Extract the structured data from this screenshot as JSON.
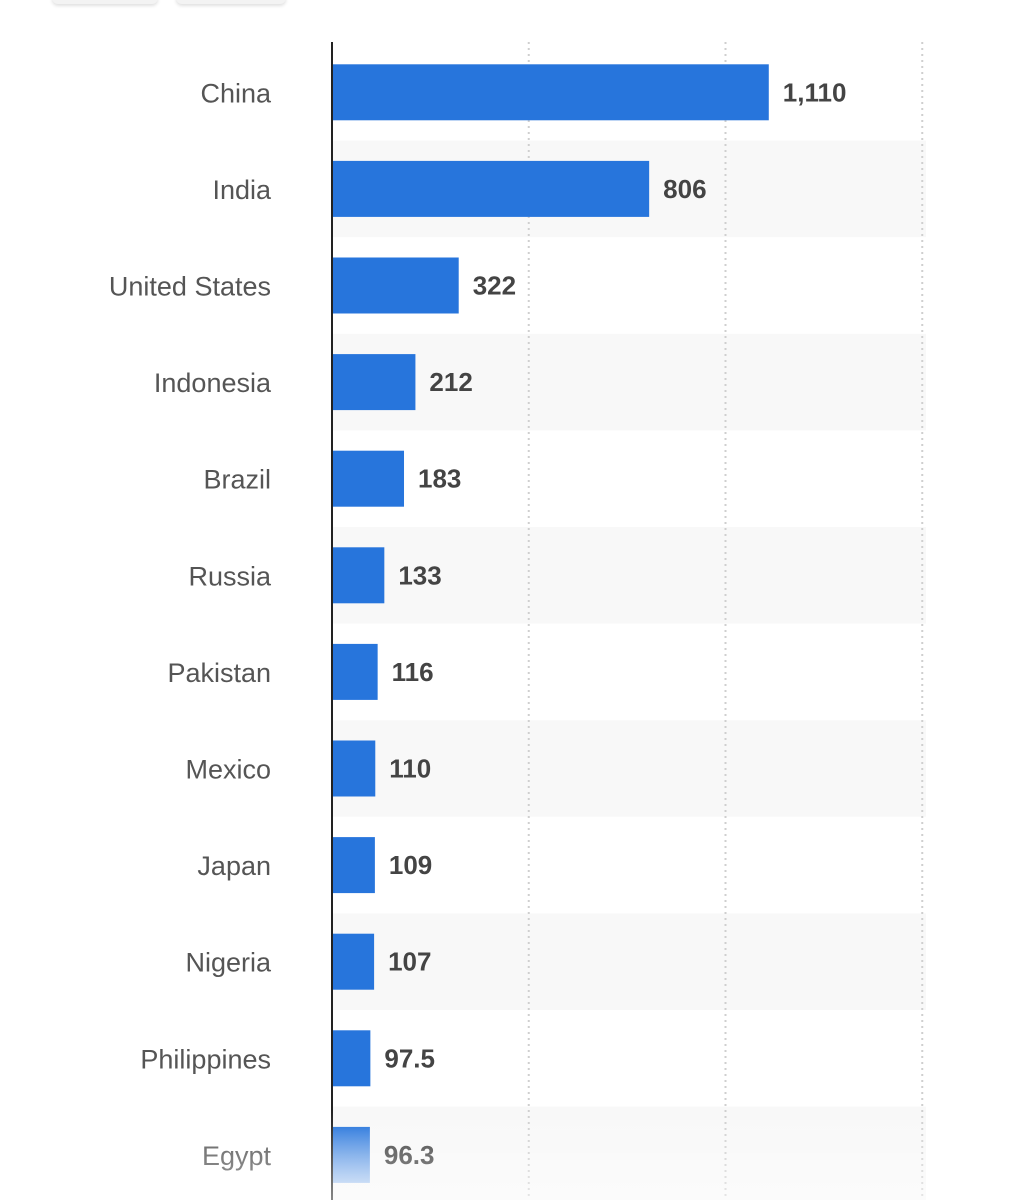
{
  "chart_data": {
    "type": "bar",
    "orientation": "horizontal",
    "categories": [
      "China",
      "India",
      "United States",
      "Indonesia",
      "Brazil",
      "Russia",
      "Pakistan",
      "Mexico",
      "Japan",
      "Nigeria",
      "Philippines",
      "Egypt"
    ],
    "values": [
      1110,
      806,
      322,
      212,
      183,
      133,
      116,
      110,
      109,
      107,
      97.5,
      96.3
    ],
    "value_labels": [
      "1,110",
      "806",
      "322",
      "212",
      "183",
      "133",
      "116",
      "110",
      "109",
      "107",
      "97.5",
      "96.3"
    ],
    "xlim": [
      0,
      1500
    ],
    "grid": true,
    "grid_style": "dotted vertical",
    "row_banding": true,
    "colors": {
      "bar": "#2775dc",
      "band": "#f8f8f8",
      "grid": "#cfcfcf",
      "axis": "#222222"
    }
  }
}
